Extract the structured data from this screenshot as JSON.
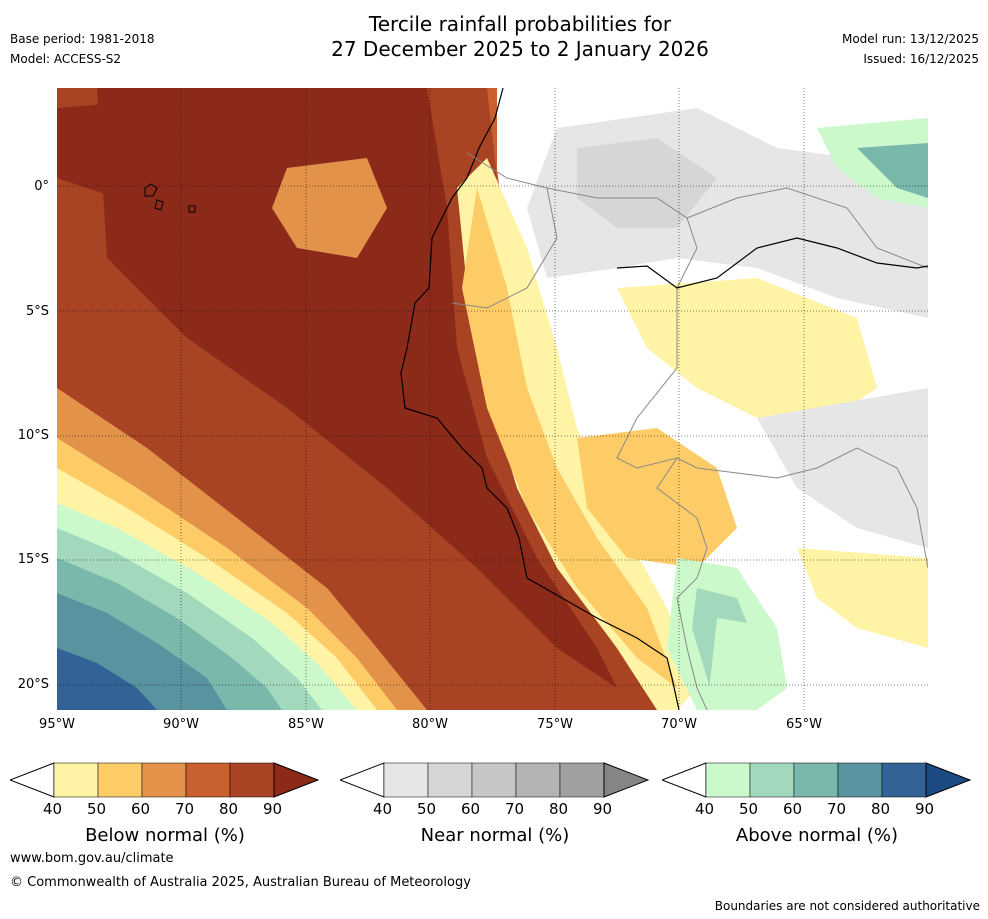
{
  "title": {
    "line1": "Tercile rainfall probabilities for",
    "line2": "27 December 2025 to 2 January 2026"
  },
  "meta": {
    "base_period": "Base period: 1981-2018",
    "model": "Model: ACCESS-S2",
    "model_run": "Model run: 13/12/2025",
    "issued": "Issued: 16/12/2025"
  },
  "map": {
    "lat_labels": [
      "0°",
      "5°S",
      "10°S",
      "15°S",
      "20°S"
    ],
    "lon_labels": [
      "95°W",
      "90°W",
      "85°W",
      "80°W",
      "75°W",
      "70°W",
      "65°W"
    ],
    "lat_range": [
      -21,
      4
    ],
    "lon_range": [
      -95,
      -60
    ]
  },
  "legends": [
    {
      "title": "Below normal (%)",
      "ticks": [
        "40",
        "50",
        "60",
        "70",
        "80",
        "90"
      ],
      "colors": [
        "#fff3a6",
        "#fecc66",
        "#e3924a",
        "#c9612f",
        "#a84323",
        "#8c2a1a"
      ]
    },
    {
      "title": "Near normal (%)",
      "ticks": [
        "40",
        "50",
        "60",
        "70",
        "80",
        "90"
      ],
      "colors": [
        "#e6e6e6",
        "#d6d6d6",
        "#c6c6c6",
        "#b4b4b4",
        "#a0a0a0",
        "#858585"
      ]
    },
    {
      "title": "Above normal (%)",
      "ticks": [
        "40",
        "50",
        "60",
        "70",
        "80",
        "90"
      ],
      "colors": [
        "#ccf9cc",
        "#a2d8bc",
        "#7ab8ac",
        "#5a93a0",
        "#326296",
        "#1b4a82"
      ]
    }
  ],
  "footer": {
    "url": "www.bom.gov.au/climate",
    "copyright": "© Commonwealth of Australia 2025, Australian Bureau of Meteorology",
    "disclaimer": "Boundaries are not considered authoritative"
  }
}
